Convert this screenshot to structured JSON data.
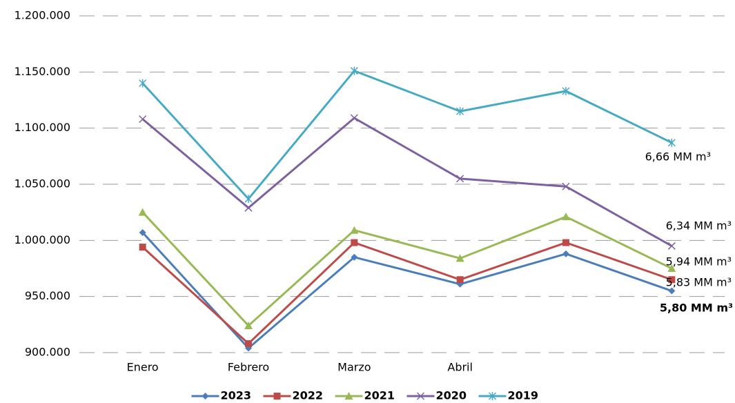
{
  "chart_data": {
    "type": "line",
    "categories": [
      "Enero",
      "Febrero",
      "Marzo",
      "Abril",
      null,
      null
    ],
    "series": [
      {
        "name": "2023",
        "color": "#4a7ebb",
        "marker": "diamond",
        "values": [
          1007000,
          904000,
          985000,
          961000,
          988000,
          955000
        ]
      },
      {
        "name": "2022",
        "color": "#be4b48",
        "marker": "square",
        "values": [
          994000,
          908000,
          998000,
          965000,
          998000,
          965000
        ]
      },
      {
        "name": "2021",
        "color": "#98b954",
        "marker": "triangle",
        "values": [
          1025000,
          924000,
          1009000,
          984000,
          1021000,
          975000
        ]
      },
      {
        "name": "2020",
        "color": "#7d60a0",
        "marker": "x",
        "values": [
          1108000,
          1029000,
          1109000,
          1055000,
          1048000,
          995000
        ]
      },
      {
        "name": "2019",
        "color": "#46aac5",
        "marker": "star",
        "values": [
          1140000,
          1037000,
          1151000,
          1115000,
          1133000,
          1087000
        ]
      }
    ],
    "ylim": [
      900000,
      1200000
    ],
    "yticks": [
      {
        "value": 900000,
        "label": "900.000"
      },
      {
        "value": 950000,
        "label": "950.000"
      },
      {
        "value": 1000000,
        "label": "1.000.000"
      },
      {
        "value": 1050000,
        "label": "1.050.000"
      },
      {
        "value": 1100000,
        "label": "1.100.000"
      },
      {
        "value": 1150000,
        "label": "1.150.000"
      },
      {
        "value": 1200000,
        "label": "1.200.000"
      }
    ],
    "grid": true,
    "legend": "bottom",
    "annotations": [
      "6,66 MM m³",
      "6,34 MM m³",
      "5,94 MM m³",
      "5,83 MM m³",
      "5,80 MM m³"
    ]
  }
}
